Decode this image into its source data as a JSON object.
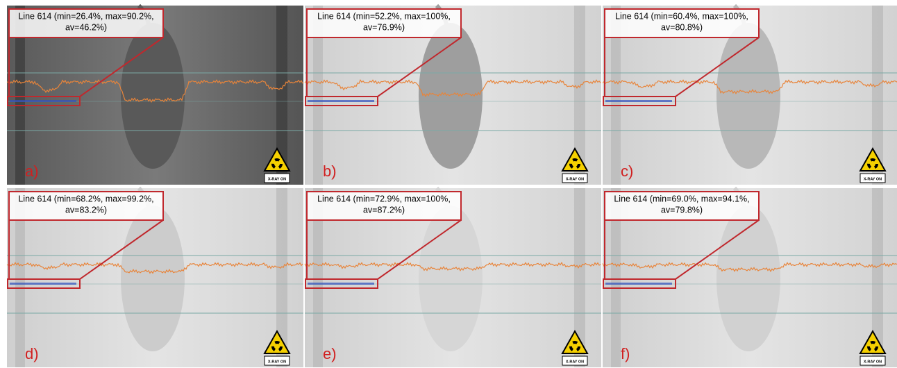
{
  "panels": [
    {
      "label": "a)",
      "callout": [
        "Line 614 (min=26.4%, max=90.2%,",
        "av=46.2%)"
      ],
      "sign": "X-RAY ON"
    },
    {
      "label": "b)",
      "callout": [
        "Line 614 (min=52.2%, max=100%,",
        "av=76.9%)"
      ],
      "sign": "X-RAY ON"
    },
    {
      "label": "c)",
      "callout": [
        "Line 614 (min=60.4%, max=100%,",
        "av=80.8%)"
      ],
      "sign": "X-RAY ON"
    },
    {
      "label": "d)",
      "callout": [
        "Line 614 (min=68.2%, max=99.2%,",
        "av=83.2%)"
      ],
      "sign": "X-RAY ON"
    },
    {
      "label": "e)",
      "callout": [
        "Line 614 (min=72.9%, max=100%,",
        "av=87.2%)"
      ],
      "sign": "X-RAY ON"
    },
    {
      "label": "f)",
      "callout": [
        "Line 614 (min=69.0%, max=94.1%,",
        "av=79.8%)"
      ],
      "sign": "X-RAY ON"
    }
  ]
}
